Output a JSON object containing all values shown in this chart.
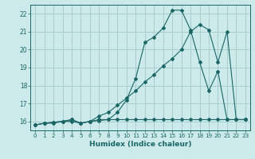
{
  "xlabel": "Humidex (Indice chaleur)",
  "background_color": "#cceaea",
  "grid_color": "#aacccc",
  "line_color": "#1a6666",
  "xlim": [
    -0.5,
    23.5
  ],
  "ylim": [
    15.5,
    22.5
  ],
  "yticks": [
    16,
    17,
    18,
    19,
    20,
    21,
    22
  ],
  "xticks": [
    0,
    1,
    2,
    3,
    4,
    5,
    6,
    7,
    8,
    9,
    10,
    11,
    12,
    13,
    14,
    15,
    16,
    17,
    18,
    19,
    20,
    21,
    22,
    23
  ],
  "line1_x": [
    0,
    1,
    2,
    3,
    4,
    5,
    6,
    7,
    8,
    9,
    10,
    11,
    12,
    13,
    14,
    15,
    16,
    17,
    18,
    19,
    20,
    21,
    22,
    23
  ],
  "line1_y": [
    15.8,
    15.9,
    15.95,
    16.0,
    16.1,
    15.9,
    16.0,
    16.1,
    16.1,
    16.5,
    17.2,
    18.4,
    20.4,
    20.7,
    21.2,
    22.2,
    22.2,
    21.1,
    19.3,
    17.7,
    18.8,
    16.1,
    16.1,
    16.1
  ],
  "line2_x": [
    0,
    1,
    2,
    3,
    4,
    5,
    6,
    7,
    8,
    9,
    10,
    11,
    12,
    13,
    14,
    15,
    16,
    17,
    18,
    19,
    20,
    21,
    22,
    23
  ],
  "line2_y": [
    15.8,
    15.9,
    15.95,
    16.0,
    16.0,
    15.9,
    16.0,
    16.3,
    16.5,
    16.9,
    17.3,
    17.7,
    18.2,
    18.6,
    19.1,
    19.5,
    20.0,
    21.0,
    21.4,
    21.1,
    19.3,
    21.0,
    16.1,
    16.1
  ],
  "line3_x": [
    0,
    1,
    2,
    3,
    4,
    5,
    6,
    7,
    8,
    9,
    10,
    11,
    12,
    13,
    14,
    15,
    16,
    17,
    18,
    19,
    20,
    21,
    22,
    23
  ],
  "line3_y": [
    15.8,
    15.9,
    15.9,
    16.0,
    16.1,
    15.9,
    16.0,
    16.05,
    16.1,
    16.1,
    16.1,
    16.1,
    16.1,
    16.1,
    16.1,
    16.1,
    16.1,
    16.1,
    16.1,
    16.1,
    16.1,
    16.1,
    16.1,
    16.1
  ]
}
